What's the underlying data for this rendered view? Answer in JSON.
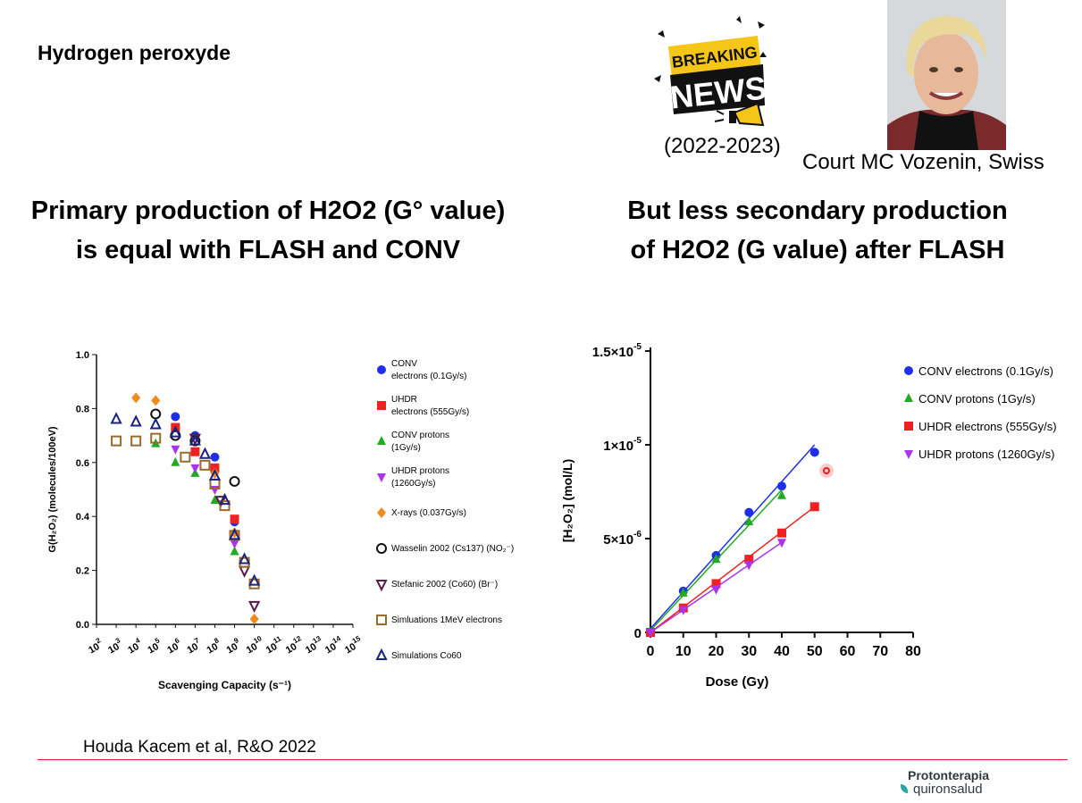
{
  "slide": {
    "top_left_title": "Hydrogen peroxyde",
    "left_headline": [
      "Primary production of H2O2 (G° value)",
      "is equal with FLASH and CONV"
    ],
    "right_headline": [
      "But less secondary production",
      "of H2O2 (G value) after FLASH"
    ],
    "badge": {
      "line1": "BREAKING",
      "line2": "NEWS",
      "icon": "megaphone-icon"
    },
    "years": "(2022-2023)",
    "court": "Court MC Vozenin, Swiss",
    "reference": "Houda Kacem et al, R&O 2022",
    "logo": {
      "line1": "Protonterapia",
      "line2": "quironsalud"
    },
    "colors": {
      "footer_line": "#dd2222",
      "accent_teal": "#2aa6a0"
    }
  },
  "chart_data": [
    {
      "type": "scatter",
      "xlabel": "Scavenging Capacity (s⁻¹)",
      "ylabel": "G(H₂O₂) (molecules/100eV)",
      "x_scale": "log",
      "xlim": [
        2,
        15
      ],
      "ylim": [
        0,
        1.0
      ],
      "y_ticks": [
        "0.0",
        "0.2",
        "0.4",
        "0.6",
        "0.8",
        "1.0"
      ],
      "x_tick_exponents": [
        2,
        3,
        4,
        5,
        6,
        7,
        8,
        9,
        10,
        11,
        12,
        13,
        14,
        15
      ],
      "legend_position": "right",
      "series": [
        {
          "name": "CONV electrons (0.1Gy/s)",
          "marker": "circle",
          "color": "#1f2fe8",
          "points": [
            [
              6,
              0.77
            ],
            [
              7,
              0.7
            ],
            [
              8,
              0.62
            ],
            [
              9,
              0.38
            ]
          ]
        },
        {
          "name": "UHDR electrons (555Gy/s)",
          "marker": "square",
          "color": "#ee2222",
          "points": [
            [
              6,
              0.73
            ],
            [
              7,
              0.64
            ],
            [
              8,
              0.58
            ],
            [
              9,
              0.39
            ]
          ]
        },
        {
          "name": "CONV protons (1Gy/s)",
          "marker": "triangle-up",
          "color": "#22aa22",
          "points": [
            [
              5,
              0.67
            ],
            [
              6,
              0.6
            ],
            [
              7,
              0.56
            ],
            [
              8,
              0.46
            ],
            [
              9,
              0.27
            ]
          ]
        },
        {
          "name": "UHDR protons (1260Gy/s)",
          "marker": "triangle-down",
          "color": "#aa33ee",
          "points": [
            [
              6,
              0.65
            ],
            [
              7,
              0.58
            ],
            [
              8,
              0.5
            ],
            [
              9,
              0.3
            ]
          ]
        },
        {
          "name": "X-rays (0.037Gy/s)",
          "marker": "diamond",
          "color": "#f08a1c",
          "points": [
            [
              4,
              0.84
            ],
            [
              5,
              0.83
            ],
            [
              8,
              0.56
            ],
            [
              9,
              0.34
            ],
            [
              10,
              0.02
            ]
          ]
        },
        {
          "name": "Wasselin 2002 (Cs137) (NO₂⁻)",
          "marker": "open-circle",
          "color": "#111111",
          "points": [
            [
              5,
              0.78
            ],
            [
              6,
              0.7
            ],
            [
              7,
              0.68
            ],
            [
              9,
              0.53
            ]
          ]
        },
        {
          "name": "Stefanic 2002 (Co60) (Br⁻)",
          "marker": "open-triangle-down",
          "color": "#5a1a4a",
          "points": [
            [
              7,
              0.69
            ],
            [
              8.3,
              0.46
            ],
            [
              9.5,
              0.2
            ],
            [
              10,
              0.07
            ]
          ]
        },
        {
          "name": "Simluations 1MeV electrons",
          "marker": "open-square",
          "color": "#9a6a2a",
          "points": [
            [
              3,
              0.68
            ],
            [
              4,
              0.68
            ],
            [
              5,
              0.69
            ],
            [
              6.5,
              0.62
            ],
            [
              7.5,
              0.59
            ],
            [
              8,
              0.52
            ],
            [
              8.5,
              0.44
            ],
            [
              9,
              0.33
            ],
            [
              9.5,
              0.23
            ],
            [
              10,
              0.15
            ]
          ]
        },
        {
          "name": "Simulations Co60",
          "marker": "open-triangle-up",
          "color": "#1a237e",
          "points": [
            [
              3,
              0.76
            ],
            [
              4,
              0.75
            ],
            [
              5,
              0.74
            ],
            [
              6,
              0.71
            ],
            [
              7,
              0.68
            ],
            [
              7.5,
              0.63
            ],
            [
              8,
              0.55
            ],
            [
              8.5,
              0.46
            ],
            [
              9,
              0.33
            ],
            [
              9.5,
              0.24
            ],
            [
              10,
              0.16
            ]
          ]
        }
      ]
    },
    {
      "type": "scatter",
      "xlabel": "Dose (Gy)",
      "ylabel": "[H₂O₂] (mol/L)",
      "xlim": [
        0,
        80
      ],
      "ylim": [
        0,
        1.5e-05
      ],
      "x_ticks": [
        "0",
        "10",
        "20",
        "30",
        "40",
        "50",
        "60",
        "70",
        "80"
      ],
      "y_ticks": [
        {
          "v": 0,
          "label": "0",
          "exp": ""
        },
        {
          "v": 5e-06,
          "label": "5×10",
          "exp": "-6"
        },
        {
          "v": 1e-05,
          "label": "1×10",
          "exp": "-5"
        },
        {
          "v": 1.5e-05,
          "label": "1.5×10",
          "exp": "-5"
        }
      ],
      "legend_position": "top-right",
      "series": [
        {
          "name": "CONV electrons (0.1Gy/s)",
          "marker": "circle",
          "color": "#1f2fe8",
          "points": [
            [
              0,
              0
            ],
            [
              10,
              2.2e-06
            ],
            [
              20,
              4.1e-06
            ],
            [
              30,
              6.4e-06
            ],
            [
              40,
              7.8e-06
            ],
            [
              50,
              9.6e-06
            ]
          ],
          "fit": [
            [
              0,
              2e-07
            ],
            [
              50,
              1e-05
            ]
          ]
        },
        {
          "name": "CONV protons (1Gy/s)",
          "marker": "triangle-up",
          "color": "#22aa22",
          "points": [
            [
              0,
              0
            ],
            [
              10,
              2.1e-06
            ],
            [
              20,
              3.9e-06
            ],
            [
              30,
              5.9e-06
            ],
            [
              40,
              7.3e-06
            ]
          ],
          "fit": [
            [
              0,
              1e-07
            ],
            [
              40,
              7.6e-06
            ]
          ]
        },
        {
          "name": "UHDR electrons (555Gy/s)",
          "marker": "square",
          "color": "#ee2222",
          "points": [
            [
              0,
              0
            ],
            [
              10,
              1.3e-06
            ],
            [
              20,
              2.6e-06
            ],
            [
              30,
              3.9e-06
            ],
            [
              40,
              5.3e-06
            ],
            [
              50,
              6.7e-06
            ]
          ],
          "fit": [
            [
              0,
              0.0
            ],
            [
              50,
              6.7e-06
            ]
          ]
        },
        {
          "name": "UHDR protons (1260Gy/s)",
          "marker": "triangle-down",
          "color": "#aa33ee",
          "points": [
            [
              0,
              0
            ],
            [
              10,
              1.2e-06
            ],
            [
              20,
              2.3e-06
            ],
            [
              30,
              3.6e-06
            ],
            [
              40,
              4.8e-06
            ]
          ],
          "fit": [
            [
              0,
              0.0
            ],
            [
              40,
              4.8e-06
            ]
          ]
        }
      ]
    }
  ]
}
